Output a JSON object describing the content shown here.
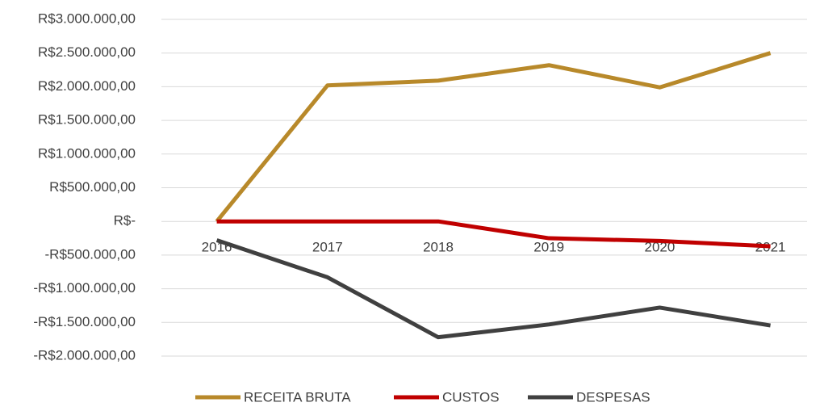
{
  "chart_data": {
    "type": "line",
    "categories": [
      "2016",
      "2017",
      "2018",
      "2019",
      "2020",
      "2021"
    ],
    "series": [
      {
        "name": "RECEITA BRUTA",
        "color": "#b8892a",
        "values": [
          0,
          2020000,
          2090000,
          2320000,
          1990000,
          2500000
        ]
      },
      {
        "name": "CUSTOS",
        "color": "#c00000",
        "values": [
          0,
          0,
          0,
          -250000,
          -290000,
          -370000
        ]
      },
      {
        "name": "DESPESAS",
        "color": "#404040",
        "values": [
          -280000,
          -830000,
          -1720000,
          -1530000,
          -1280000,
          -1545000
        ]
      }
    ],
    "ylim": [
      -2000000,
      3000000
    ],
    "yticks": [
      {
        "value": -2000000,
        "label": "-R$2.000.000,00"
      },
      {
        "value": -1500000,
        "label": "-R$1.500.000,00"
      },
      {
        "value": -1000000,
        "label": "-R$1.000.000,00"
      },
      {
        "value": -500000,
        "label": "-R$500.000,00"
      },
      {
        "value": 0,
        "label": "R$-"
      },
      {
        "value": 500000,
        "label": "R$500.000,00"
      },
      {
        "value": 1000000,
        "label": "R$1.000.000,00"
      },
      {
        "value": 1500000,
        "label": "R$1.500.000,00"
      },
      {
        "value": 2000000,
        "label": "R$2.000.000,00"
      },
      {
        "value": 2500000,
        "label": "R$2.500.000,00"
      },
      {
        "value": 3000000,
        "label": "R$3.000.000,00"
      }
    ],
    "grid": true,
    "legend": "bottom"
  }
}
